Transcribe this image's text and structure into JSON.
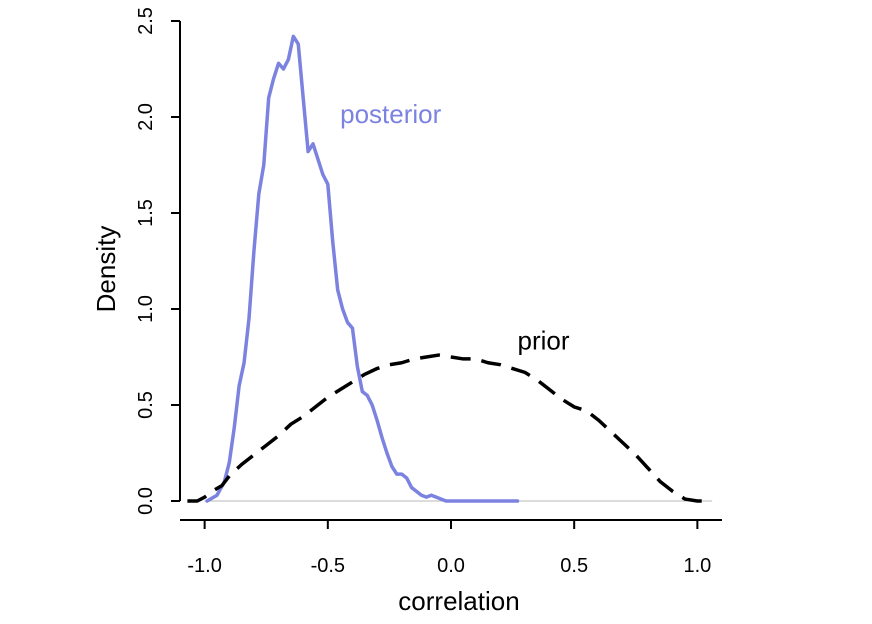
{
  "chart_data": {
    "type": "line",
    "title": "",
    "xlabel": "correlation",
    "ylabel": "Density",
    "xlim": [
      -1.1,
      1.1
    ],
    "ylim": [
      0,
      2.5
    ],
    "x_ticks": [
      -1.0,
      -0.5,
      0.0,
      0.5,
      1.0
    ],
    "x_tick_labels": [
      "-1.0",
      "-0.5",
      "0.0",
      "0.5",
      "1.0"
    ],
    "y_ticks": [
      0.0,
      0.5,
      1.0,
      1.5,
      2.0,
      2.5
    ],
    "y_tick_labels": [
      "0.0",
      "0.5",
      "1.0",
      "1.5",
      "2.0",
      "2.5"
    ],
    "baseline": 0,
    "grid": false,
    "series": [
      {
        "name": "posterior",
        "color": "#7b82e0",
        "style": "solid",
        "x": [
          -0.99,
          -0.95,
          -0.92,
          -0.9,
          -0.88,
          -0.86,
          -0.84,
          -0.82,
          -0.8,
          -0.78,
          -0.76,
          -0.74,
          -0.72,
          -0.7,
          -0.68,
          -0.66,
          -0.64,
          -0.62,
          -0.6,
          -0.58,
          -0.56,
          -0.54,
          -0.52,
          -0.5,
          -0.48,
          -0.46,
          -0.44,
          -0.42,
          -0.4,
          -0.38,
          -0.36,
          -0.34,
          -0.32,
          -0.3,
          -0.28,
          -0.26,
          -0.24,
          -0.22,
          -0.2,
          -0.18,
          -0.16,
          -0.14,
          -0.12,
          -0.1,
          -0.08,
          -0.06,
          -0.04,
          -0.02,
          0.0,
          0.03,
          0.06,
          0.09,
          0.12,
          0.15,
          0.18,
          0.21,
          0.24,
          0.27
        ],
        "y": [
          0.0,
          0.03,
          0.1,
          0.2,
          0.38,
          0.6,
          0.72,
          0.95,
          1.3,
          1.6,
          1.75,
          2.1,
          2.2,
          2.28,
          2.25,
          2.3,
          2.42,
          2.38,
          2.1,
          1.82,
          1.86,
          1.78,
          1.7,
          1.65,
          1.35,
          1.1,
          1.0,
          0.93,
          0.9,
          0.7,
          0.57,
          0.55,
          0.5,
          0.42,
          0.33,
          0.25,
          0.18,
          0.14,
          0.14,
          0.12,
          0.07,
          0.05,
          0.03,
          0.02,
          0.03,
          0.02,
          0.01,
          0.0,
          0.0,
          0.0,
          0.0,
          0.0,
          0.0,
          0.0,
          0.0,
          0.0,
          0.0,
          0.0
        ]
      },
      {
        "name": "prior",
        "color": "#000000",
        "style": "dashed",
        "x": [
          -1.07,
          -1.03,
          -1.0,
          -0.97,
          -0.93,
          -0.9,
          -0.85,
          -0.8,
          -0.75,
          -0.7,
          -0.65,
          -0.6,
          -0.55,
          -0.5,
          -0.45,
          -0.4,
          -0.35,
          -0.3,
          -0.25,
          -0.2,
          -0.15,
          -0.1,
          -0.05,
          0.0,
          0.05,
          0.1,
          0.15,
          0.2,
          0.25,
          0.3,
          0.35,
          0.4,
          0.45,
          0.5,
          0.55,
          0.6,
          0.65,
          0.7,
          0.75,
          0.8,
          0.85,
          0.9,
          0.95,
          1.0,
          1.03,
          1.06
        ],
        "y": [
          0.0,
          0.0,
          0.02,
          0.05,
          0.08,
          0.13,
          0.19,
          0.24,
          0.29,
          0.34,
          0.4,
          0.44,
          0.49,
          0.54,
          0.58,
          0.62,
          0.66,
          0.69,
          0.71,
          0.72,
          0.74,
          0.75,
          0.76,
          0.75,
          0.74,
          0.74,
          0.72,
          0.71,
          0.69,
          0.67,
          0.63,
          0.58,
          0.53,
          0.49,
          0.47,
          0.42,
          0.36,
          0.3,
          0.24,
          0.17,
          0.1,
          0.05,
          0.01,
          0.0,
          0.0,
          0.0
        ]
      }
    ],
    "annotations": [
      {
        "text": "posterior",
        "x": -0.45,
        "y": 1.97,
        "color": "#7b82e0"
      },
      {
        "text": "prior",
        "x": 0.27,
        "y": 0.79,
        "color": "#000000"
      }
    ]
  }
}
